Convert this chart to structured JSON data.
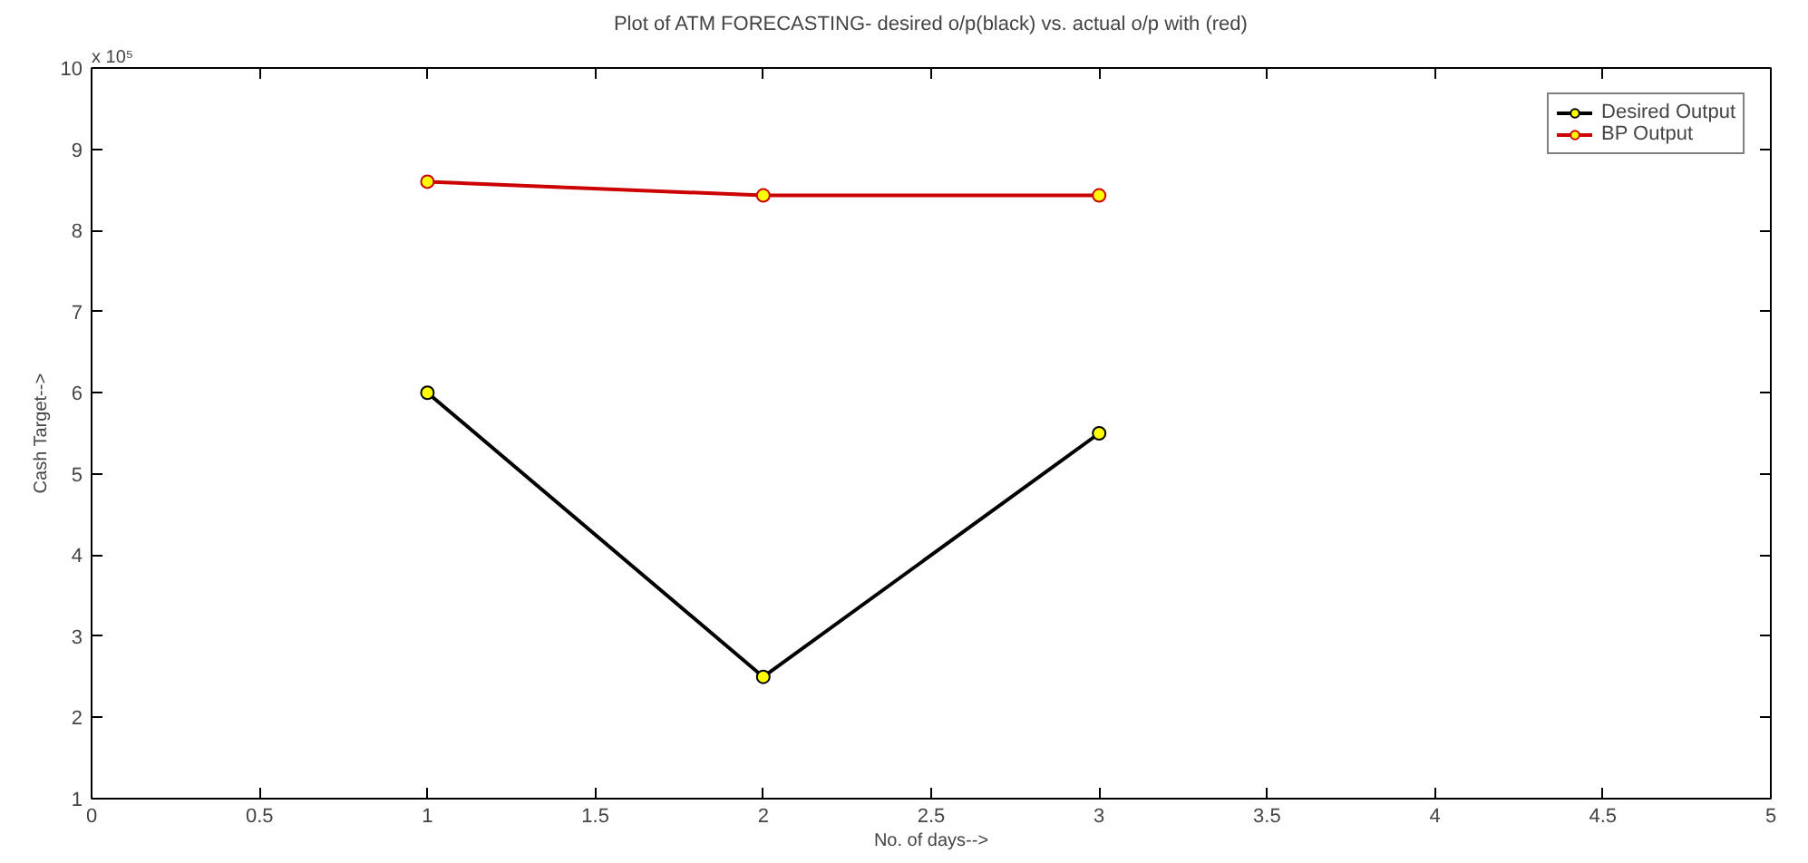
{
  "chart_data": {
    "type": "line",
    "title": "Plot of ATM FORECASTING- desired o/p(black) vs. actual o/p with (red)",
    "xlabel": "No. of days-->",
    "ylabel": "Cash Target-->",
    "x": [
      1,
      2,
      3
    ],
    "series": [
      {
        "name": "Desired Output",
        "color": "#000000",
        "values": [
          6.0,
          2.5,
          5.5
        ]
      },
      {
        "name": "BP Output",
        "color": "#cc0000",
        "values": [
          8.6,
          8.43,
          8.43
        ]
      }
    ],
    "xlim": [
      0,
      5
    ],
    "xticks": [
      0,
      0.5,
      1,
      1.5,
      2,
      2.5,
      3,
      3.5,
      4,
      4.5,
      5
    ],
    "ylim": [
      1,
      10
    ],
    "yticks": [
      1,
      2,
      3,
      4,
      5,
      6,
      7,
      8,
      9,
      10
    ],
    "annotations": [
      "x 10⁵"
    ],
    "legend": "top right",
    "marker": "circle",
    "line_style": "solid",
    "grid": false
  }
}
